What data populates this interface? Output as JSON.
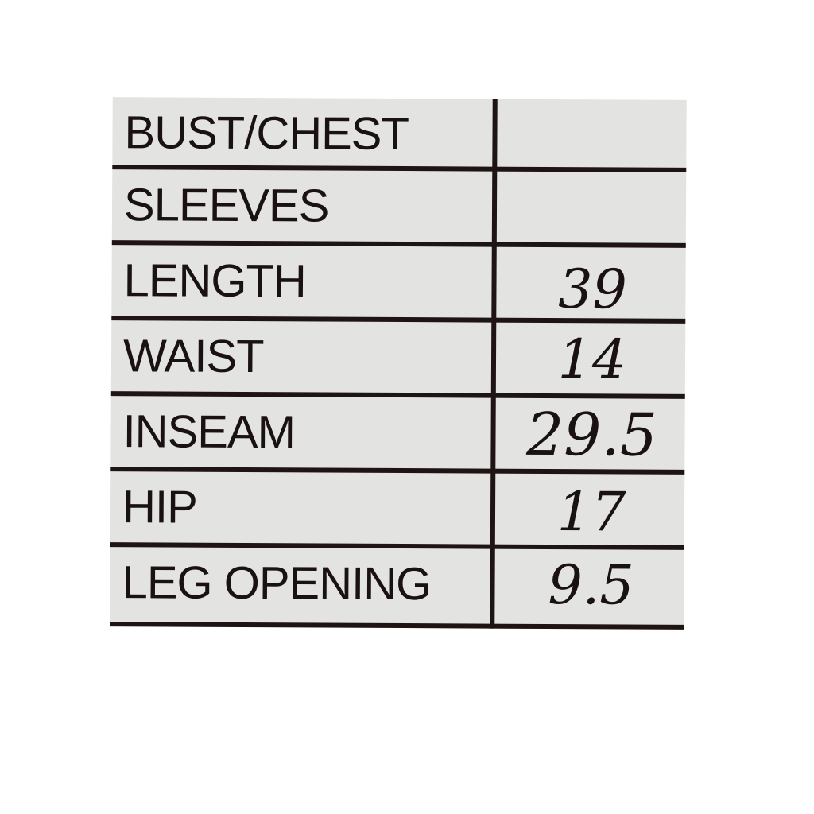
{
  "rows": [
    {
      "label": "BUST/CHEST",
      "value": ""
    },
    {
      "label": "SLEEVES",
      "value": ""
    },
    {
      "label": "LENGTH",
      "value": "39"
    },
    {
      "label": "WAIST",
      "value": "14"
    },
    {
      "label": "INSEAM",
      "value": "29.5"
    },
    {
      "label": "HIP",
      "value": "17"
    },
    {
      "label": "LEG OPENING",
      "value": "9.5"
    }
  ]
}
